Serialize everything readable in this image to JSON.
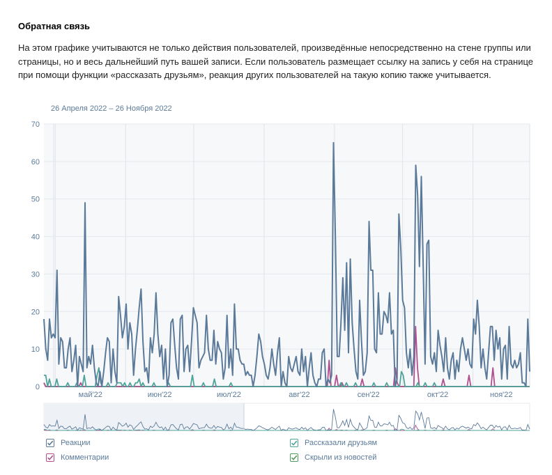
{
  "section": {
    "title": "Обратная связь",
    "description": "На этом графике учитываются не только действия пользователей, произведённые непосредственно на стене группы или страницы, но и весь дальнейший путь вашей записи. Если пользователь размещает ссылку на запись у себя на странице при помощи функции «рассказать друзьям», реакция других пользователей на такую копию также учитывается.",
    "date_range": "26 Апреля 2022 – 26 Ноября 2022"
  },
  "legend": {
    "items": [
      {
        "label": "Реакции",
        "color": "#5b7a99"
      },
      {
        "label": "Рассказали друзьям",
        "color": "#4ea39a"
      },
      {
        "label": "Комментарии",
        "color": "#b04f8f"
      },
      {
        "label": "Скрыли из новостей",
        "color": "#4f9a5c"
      }
    ]
  },
  "chart_data": {
    "type": "line",
    "ylim": [
      0,
      70
    ],
    "yticks": [
      0,
      10,
      20,
      30,
      40,
      50,
      60,
      70
    ],
    "x_start": "2022-04-26",
    "x_end": "2022-11-26",
    "month_ticks": [
      {
        "label": "май'22",
        "date": "2022-05-01"
      },
      {
        "label": "июн'22",
        "date": "2022-06-01"
      },
      {
        "label": "июл'22",
        "date": "2022-07-01"
      },
      {
        "label": "авг'22",
        "date": "2022-08-01"
      },
      {
        "label": "сен'22",
        "date": "2022-09-01"
      },
      {
        "label": "окт'22",
        "date": "2022-10-01"
      },
      {
        "label": "ноя'22",
        "date": "2022-11-01"
      }
    ],
    "grid": true,
    "series": [
      {
        "name": "Реакции",
        "color": "#5b7a99",
        "values": [
          18,
          10,
          7,
          18,
          13,
          14,
          13,
          31,
          6,
          13,
          12,
          5,
          5,
          10,
          13,
          4,
          7,
          11,
          0,
          8,
          6,
          4,
          49,
          5,
          8,
          6,
          11,
          5,
          1,
          0,
          4,
          0,
          4,
          9,
          13,
          12,
          1,
          10,
          4,
          1,
          24,
          19,
          13,
          16,
          22,
          10,
          17,
          14,
          3,
          10,
          15,
          21,
          26,
          12,
          4,
          5,
          1,
          13,
          9,
          14,
          25,
          14,
          8,
          11,
          2,
          10,
          0,
          3,
          17,
          18,
          11,
          5,
          2,
          18,
          19,
          4,
          10,
          11,
          4,
          12,
          21,
          19,
          17,
          5,
          7,
          8,
          9,
          19,
          10,
          7,
          7,
          15,
          6,
          12,
          10,
          9,
          2,
          5,
          19,
          5,
          10,
          3,
          22,
          10,
          10,
          7,
          6,
          6,
          3,
          4,
          3,
          3,
          0,
          3,
          8,
          14,
          12,
          8,
          6,
          3,
          2,
          5,
          10,
          6,
          3,
          9,
          13,
          0,
          4,
          1,
          0,
          8,
          5,
          4,
          6,
          8,
          4,
          3,
          10,
          4,
          8,
          0,
          5,
          9,
          3,
          1,
          0,
          2,
          2,
          9,
          10,
          0,
          2,
          1,
          3,
          65,
          40,
          8,
          8,
          17,
          29,
          15,
          33,
          9,
          34,
          17,
          10,
          4,
          2,
          23,
          12,
          3,
          4,
          9,
          44,
          31,
          31,
          10,
          9,
          25,
          14,
          14,
          20,
          19,
          17,
          25,
          14,
          15,
          0,
          2,
          46,
          37,
          23,
          21,
          9,
          5,
          10,
          3,
          8,
          59,
          51,
          32,
          56,
          32,
          6,
          38,
          39,
          8,
          6,
          9,
          4,
          15,
          11,
          8,
          4,
          13,
          5,
          2,
          7,
          9,
          2,
          7,
          4,
          10,
          13,
          10,
          7,
          10,
          6,
          5,
          18,
          14,
          23,
          16,
          5,
          10,
          5,
          2,
          9,
          16,
          16,
          7,
          15,
          10,
          13,
          2,
          10,
          11,
          2,
          16,
          6,
          5,
          7,
          5,
          6,
          9,
          1,
          1,
          0,
          18,
          4
        ]
      },
      {
        "name": "Рассказали друзьям",
        "color": "#4ea39a",
        "values": [
          3,
          3,
          0,
          2,
          0,
          0,
          0,
          2,
          0,
          0,
          0,
          0,
          0,
          1,
          0,
          0,
          0,
          0,
          1,
          0,
          0,
          0,
          3,
          0,
          0,
          0,
          0,
          0,
          0,
          3,
          5,
          1,
          0,
          0,
          0,
          1,
          0,
          0,
          0,
          0,
          1,
          1,
          1,
          0,
          1,
          0,
          0,
          1,
          0,
          0,
          1,
          1,
          2,
          0,
          1,
          0,
          0,
          0,
          0,
          0,
          1,
          0,
          0,
          0,
          0,
          0,
          0,
          0,
          1,
          0,
          0,
          0,
          0,
          0,
          0,
          0,
          0,
          0,
          0,
          0,
          0,
          3,
          0,
          0,
          0,
          0,
          0,
          1,
          0,
          0,
          0,
          0,
          0,
          2,
          0,
          0,
          0,
          0,
          0,
          0,
          0,
          0,
          1,
          0,
          0,
          0,
          0,
          0,
          0,
          0,
          0,
          0,
          0,
          0,
          0,
          0,
          0,
          0,
          0,
          0,
          0,
          0,
          0,
          0,
          0,
          0,
          0,
          0,
          0,
          0,
          0,
          0,
          0,
          0,
          0,
          0,
          0,
          0,
          0,
          0,
          0,
          0,
          0,
          0,
          0,
          0,
          0,
          0,
          0,
          0,
          0,
          0,
          0,
          0,
          0,
          0,
          0,
          0,
          0,
          0,
          0,
          0,
          1,
          0,
          0,
          1,
          0,
          0,
          0,
          0,
          1,
          0,
          0,
          0,
          0,
          0,
          0,
          0,
          0,
          0,
          1,
          0,
          0,
          0,
          0,
          0,
          0,
          1,
          0,
          0,
          0,
          0,
          0,
          0,
          0,
          4,
          3,
          0,
          0,
          0,
          0,
          0,
          0,
          0,
          1,
          0,
          0,
          0,
          1,
          0,
          0,
          0,
          0,
          1,
          0,
          0,
          0,
          0,
          0,
          0,
          0,
          0,
          0,
          0,
          0,
          0,
          0,
          0,
          0,
          0,
          0,
          0,
          0,
          0,
          0,
          0,
          0,
          0,
          0,
          0,
          0,
          0,
          0,
          0,
          0,
          0,
          0,
          0,
          0,
          0,
          0,
          0,
          0,
          0,
          0,
          0,
          0,
          0,
          0,
          0,
          0,
          0,
          0,
          0,
          0,
          0
        ]
      },
      {
        "name": "Комментарии",
        "color": "#b04f8f",
        "values": [
          1,
          0,
          0,
          0,
          0,
          0,
          0,
          0,
          0,
          0,
          0,
          0,
          0,
          0,
          0,
          0,
          0,
          0,
          0,
          0,
          1,
          0,
          0,
          0,
          0,
          0,
          0,
          0,
          0,
          0,
          0,
          0,
          0,
          0,
          0,
          0,
          0,
          0,
          0,
          0,
          0,
          0,
          0,
          0,
          0,
          0,
          0,
          0,
          0,
          0,
          0,
          0,
          0,
          0,
          0,
          0,
          0,
          0,
          0,
          0,
          0,
          0,
          0,
          0,
          0,
          0,
          0,
          0,
          0,
          0,
          0,
          0,
          0,
          0,
          0,
          0,
          0,
          0,
          0,
          0,
          0,
          0,
          0,
          0,
          0,
          0,
          0,
          0,
          0,
          0,
          0,
          0,
          0,
          0,
          0,
          0,
          0,
          0,
          0,
          0,
          0,
          0,
          0,
          0,
          0,
          0,
          0,
          0,
          0,
          0,
          0,
          0,
          0,
          0,
          0,
          0,
          0,
          0,
          0,
          0,
          0,
          0,
          0,
          0,
          0,
          0,
          0,
          0,
          0,
          0,
          0,
          0,
          0,
          0,
          0,
          0,
          0,
          0,
          0,
          0,
          0,
          0,
          0,
          0,
          0,
          0,
          0,
          0,
          0,
          0,
          0,
          0,
          0,
          0,
          0,
          7,
          0,
          0,
          0,
          3,
          0,
          0,
          1,
          0,
          0,
          0,
          0,
          0,
          0,
          0,
          0,
          0,
          0,
          2,
          0,
          0,
          0,
          0,
          0,
          0,
          0,
          0,
          0,
          0,
          0,
          0,
          0,
          0,
          0,
          0,
          0,
          5,
          1,
          0,
          0,
          0,
          0,
          0,
          0,
          0,
          0,
          0,
          16,
          5,
          0,
          0,
          0,
          0,
          0,
          0,
          0,
          0,
          0,
          0,
          0,
          0,
          0,
          2,
          0,
          0,
          0,
          0,
          0,
          0,
          0,
          0,
          0,
          0,
          0,
          0,
          0,
          3,
          0,
          0,
          0,
          0,
          0,
          0,
          0,
          0,
          0,
          0,
          0,
          0,
          5,
          0,
          0,
          0,
          0,
          0,
          0,
          0,
          0,
          0,
          0,
          0,
          0,
          0,
          0,
          0,
          0,
          0,
          0,
          0,
          0
        ]
      },
      {
        "name": "Скрыли из новостей",
        "color": "#4f9a5c",
        "values": [
          1,
          0,
          0,
          0,
          0,
          0,
          0,
          0,
          0,
          0,
          0,
          0,
          0,
          0,
          0,
          0,
          0,
          0,
          0,
          0,
          0,
          0,
          0,
          0,
          0,
          0,
          0,
          0,
          0,
          0,
          0,
          0,
          0,
          0,
          0,
          0,
          0,
          0,
          0,
          0,
          0,
          0,
          0,
          0,
          0,
          0,
          0,
          0,
          0,
          0,
          0,
          0,
          0,
          0,
          0,
          0,
          0,
          0,
          0,
          0,
          0,
          0,
          0,
          0,
          0,
          0,
          0,
          0,
          0,
          0,
          0,
          0,
          0,
          0,
          0,
          0,
          0,
          0,
          0,
          0,
          0,
          0,
          0,
          0,
          0,
          0,
          0,
          0,
          0,
          0,
          0,
          0,
          0,
          0,
          0,
          0,
          0,
          0,
          0,
          0,
          0,
          0,
          0,
          0,
          0,
          0,
          0,
          0,
          0,
          0,
          0,
          0,
          0,
          0,
          0,
          0,
          0,
          0,
          0,
          0,
          0,
          0,
          0,
          0,
          0,
          0,
          0,
          0,
          0,
          0,
          0,
          0,
          0,
          0,
          0,
          0,
          0,
          0,
          0,
          0,
          0,
          0,
          0,
          0,
          0,
          0,
          0,
          0,
          0,
          0,
          0,
          0,
          0,
          0,
          0,
          0,
          0,
          0,
          0,
          0,
          0,
          0,
          0,
          0,
          0,
          0,
          0,
          0,
          0,
          0,
          0,
          0,
          0,
          0,
          0,
          0,
          0,
          0,
          0,
          0,
          0,
          0,
          0,
          0,
          0,
          0,
          0,
          0,
          0,
          0,
          0,
          0,
          0,
          0,
          0,
          0,
          0,
          0,
          0,
          0,
          0,
          0,
          0,
          0,
          0,
          0,
          0,
          0,
          0,
          0,
          0,
          0,
          0,
          0,
          0,
          0,
          0,
          0,
          0,
          0,
          0,
          0,
          0,
          0,
          0,
          0,
          0,
          0,
          0,
          0,
          0,
          0,
          0,
          0,
          0,
          0,
          0,
          0,
          0,
          0,
          0,
          0,
          0,
          0,
          0,
          0,
          0,
          0,
          0,
          0,
          0,
          0,
          0,
          0,
          0,
          0,
          0,
          0,
          0,
          0,
          0,
          0,
          0,
          0,
          0,
          0,
          0,
          0,
          0
        ]
      }
    ]
  }
}
